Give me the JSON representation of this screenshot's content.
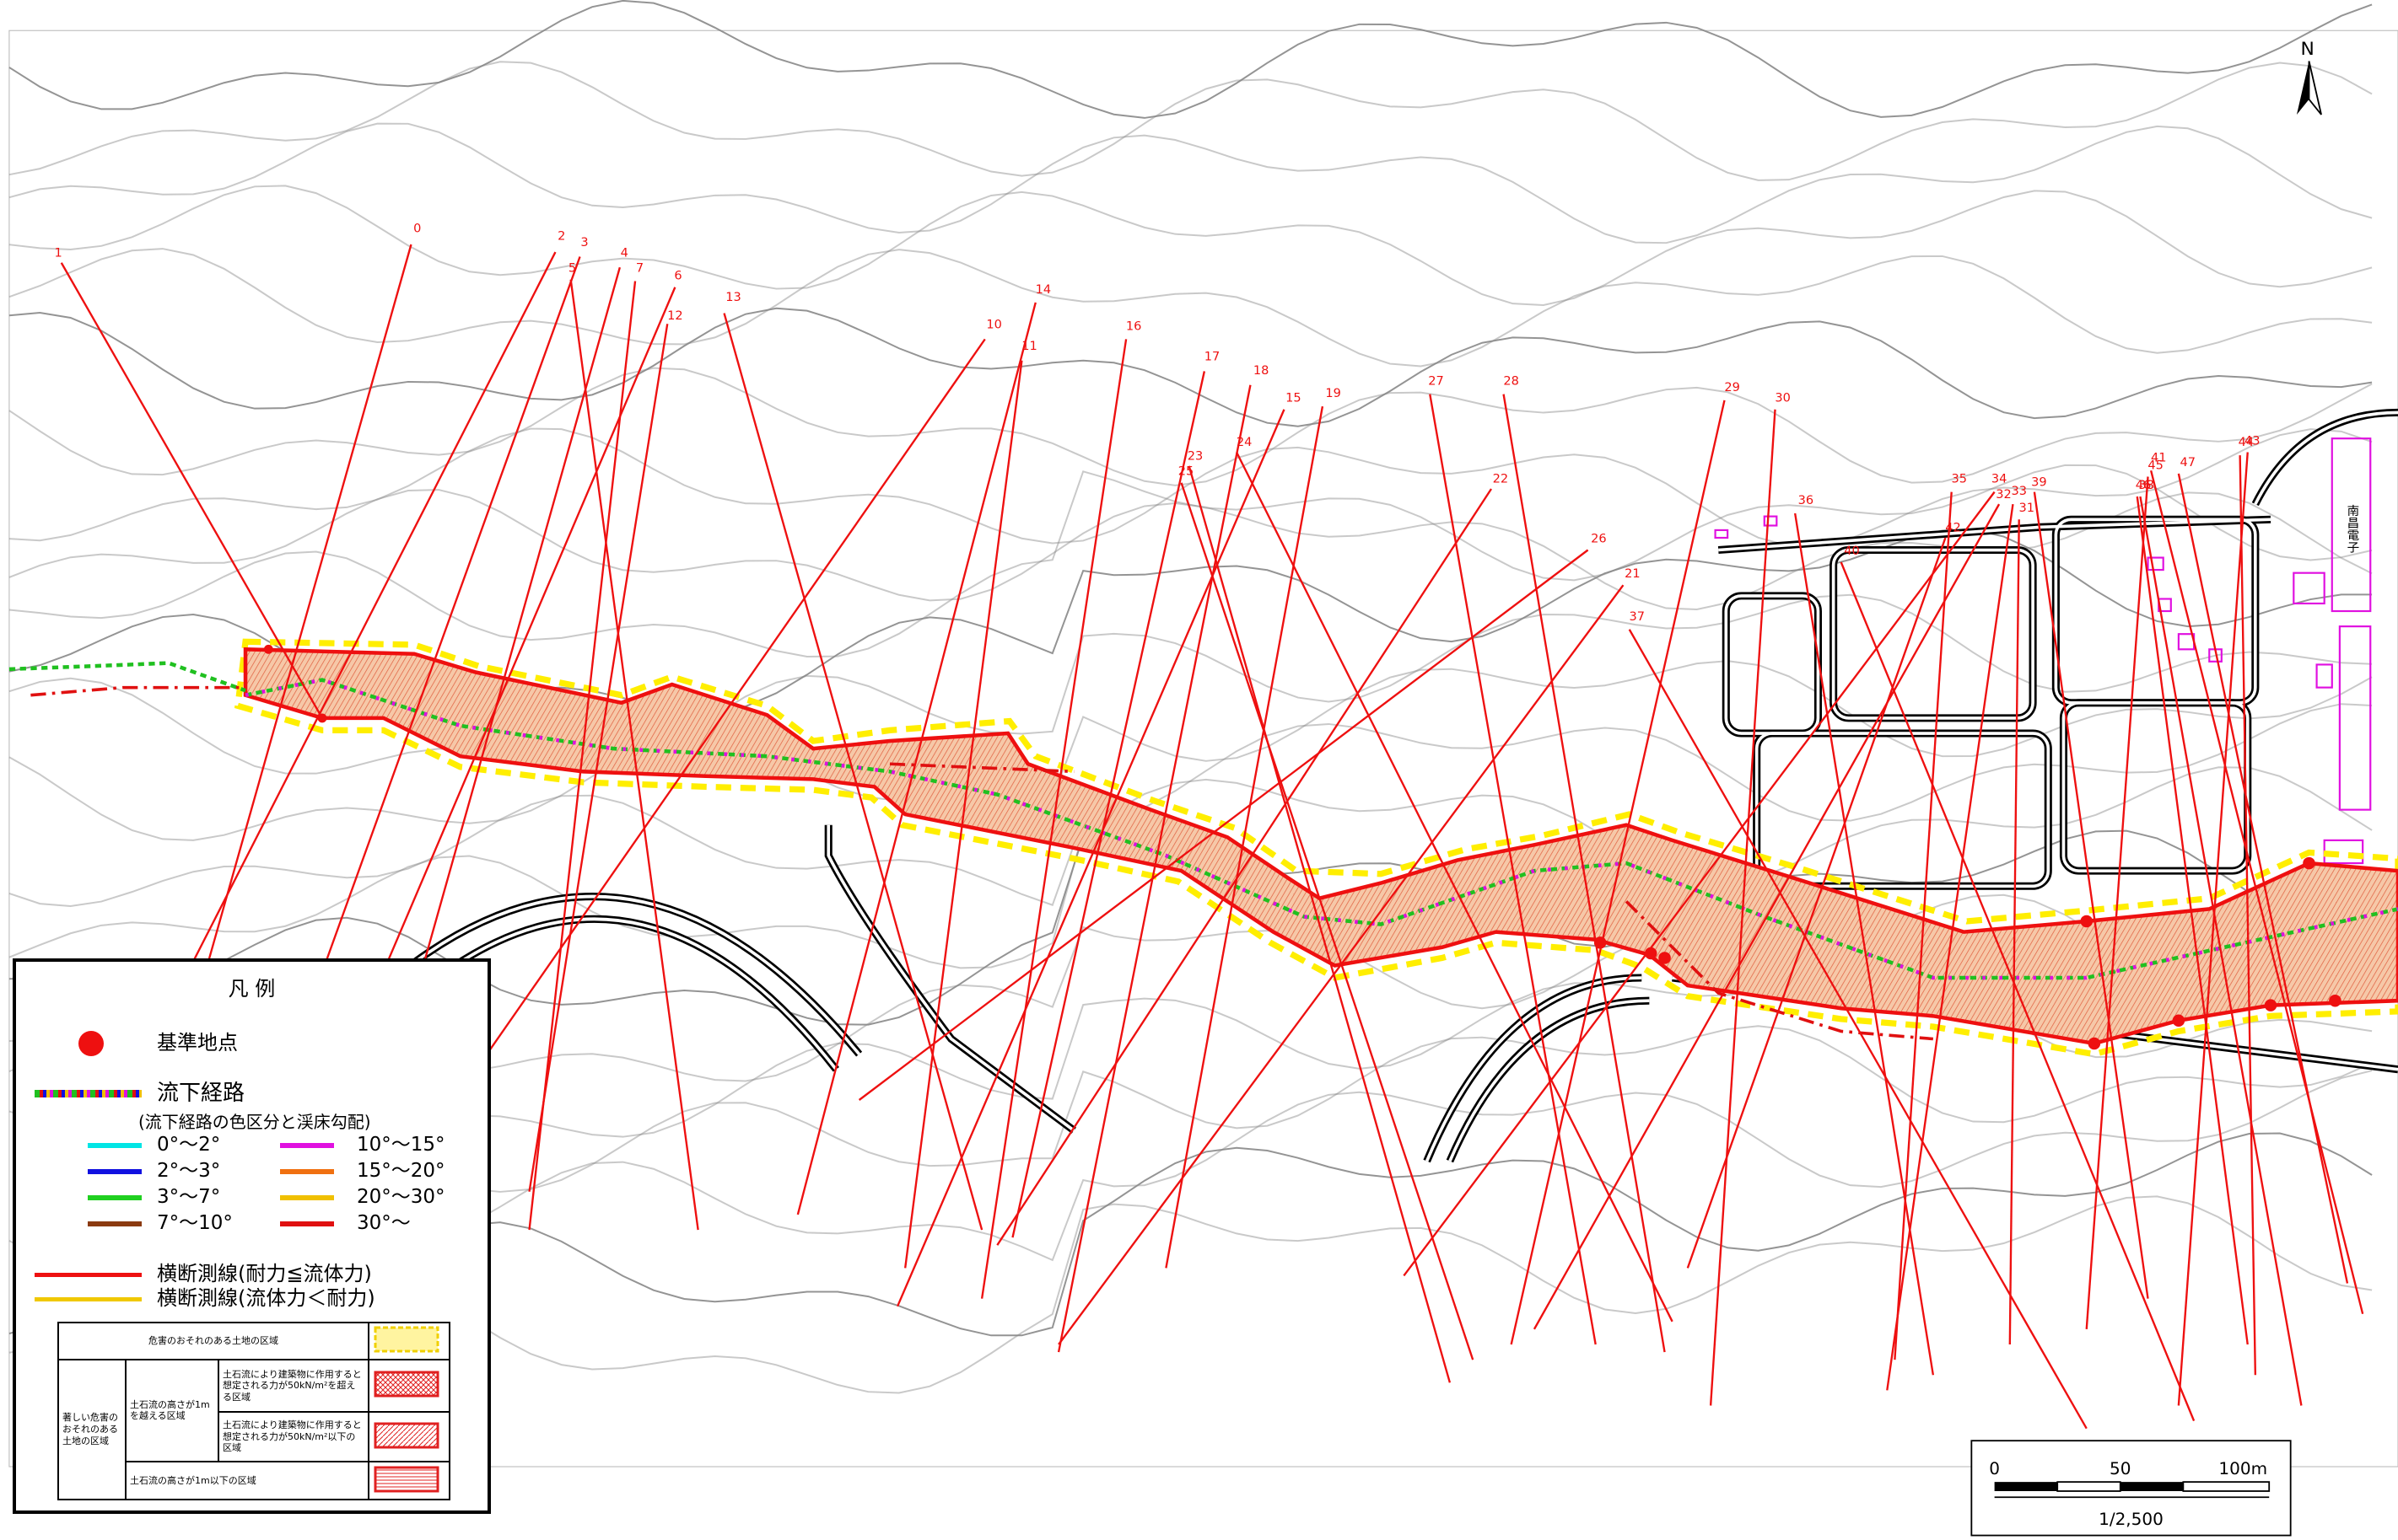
{
  "north": "N",
  "building": "南昌電子",
  "sections": [
    "1",
    "0",
    "2",
    "3",
    "5",
    "4",
    "7",
    "6",
    "12",
    "13",
    "14",
    "10",
    "11",
    "16",
    "17",
    "18",
    "15",
    "19",
    "23",
    "24",
    "25",
    "27",
    "28",
    "22",
    "26",
    "21",
    "37",
    "29",
    "30",
    "36",
    "40",
    "35",
    "34",
    "32",
    "33",
    "31",
    "39",
    "42",
    "38",
    "41",
    "45",
    "46",
    "47",
    "44",
    "43"
  ],
  "legend": {
    "title": "凡 例",
    "reference_point": "基準地点",
    "flow_route": "流下経路",
    "flow_route_note": "(流下経路の色区分と渓床勾配)",
    "gradients": [
      {
        "label": "0°～2°",
        "color": "#00e5e5"
      },
      {
        "label": "2°～3°",
        "color": "#1010e0"
      },
      {
        "label": "3°～7°",
        "color": "#20d020"
      },
      {
        "label": "7°～10°",
        "color": "#8b3a10"
      },
      {
        "label": "10°～15°",
        "color": "#e010e0"
      },
      {
        "label": "15°～20°",
        "color": "#f07010"
      },
      {
        "label": "20°～30°",
        "color": "#f0c000"
      },
      {
        "label": "30°～",
        "color": "#e01010"
      }
    ],
    "section_line_red": "横断測線(耐力≦流体力)",
    "section_line_yellow": "横断測線(流体力＜耐力)",
    "table": {
      "danger_area": "危害のおそれのある土地の区域",
      "severe_area": "著しい危害のおそれのある土地の区域",
      "height_over": "土石流の高さが1mを越える区域",
      "force_over": "土石流により建築物に作用すると想定される力が50kN/m²を超える区域",
      "force_under": "土石流により建築物に作用すると想定される力が50kN/m²以下の区域",
      "height_under": "土石流の高さが1m以下の区域"
    }
  },
  "scale": {
    "labels": [
      "0",
      "50",
      "100m"
    ],
    "ratio": "1/2,500"
  }
}
